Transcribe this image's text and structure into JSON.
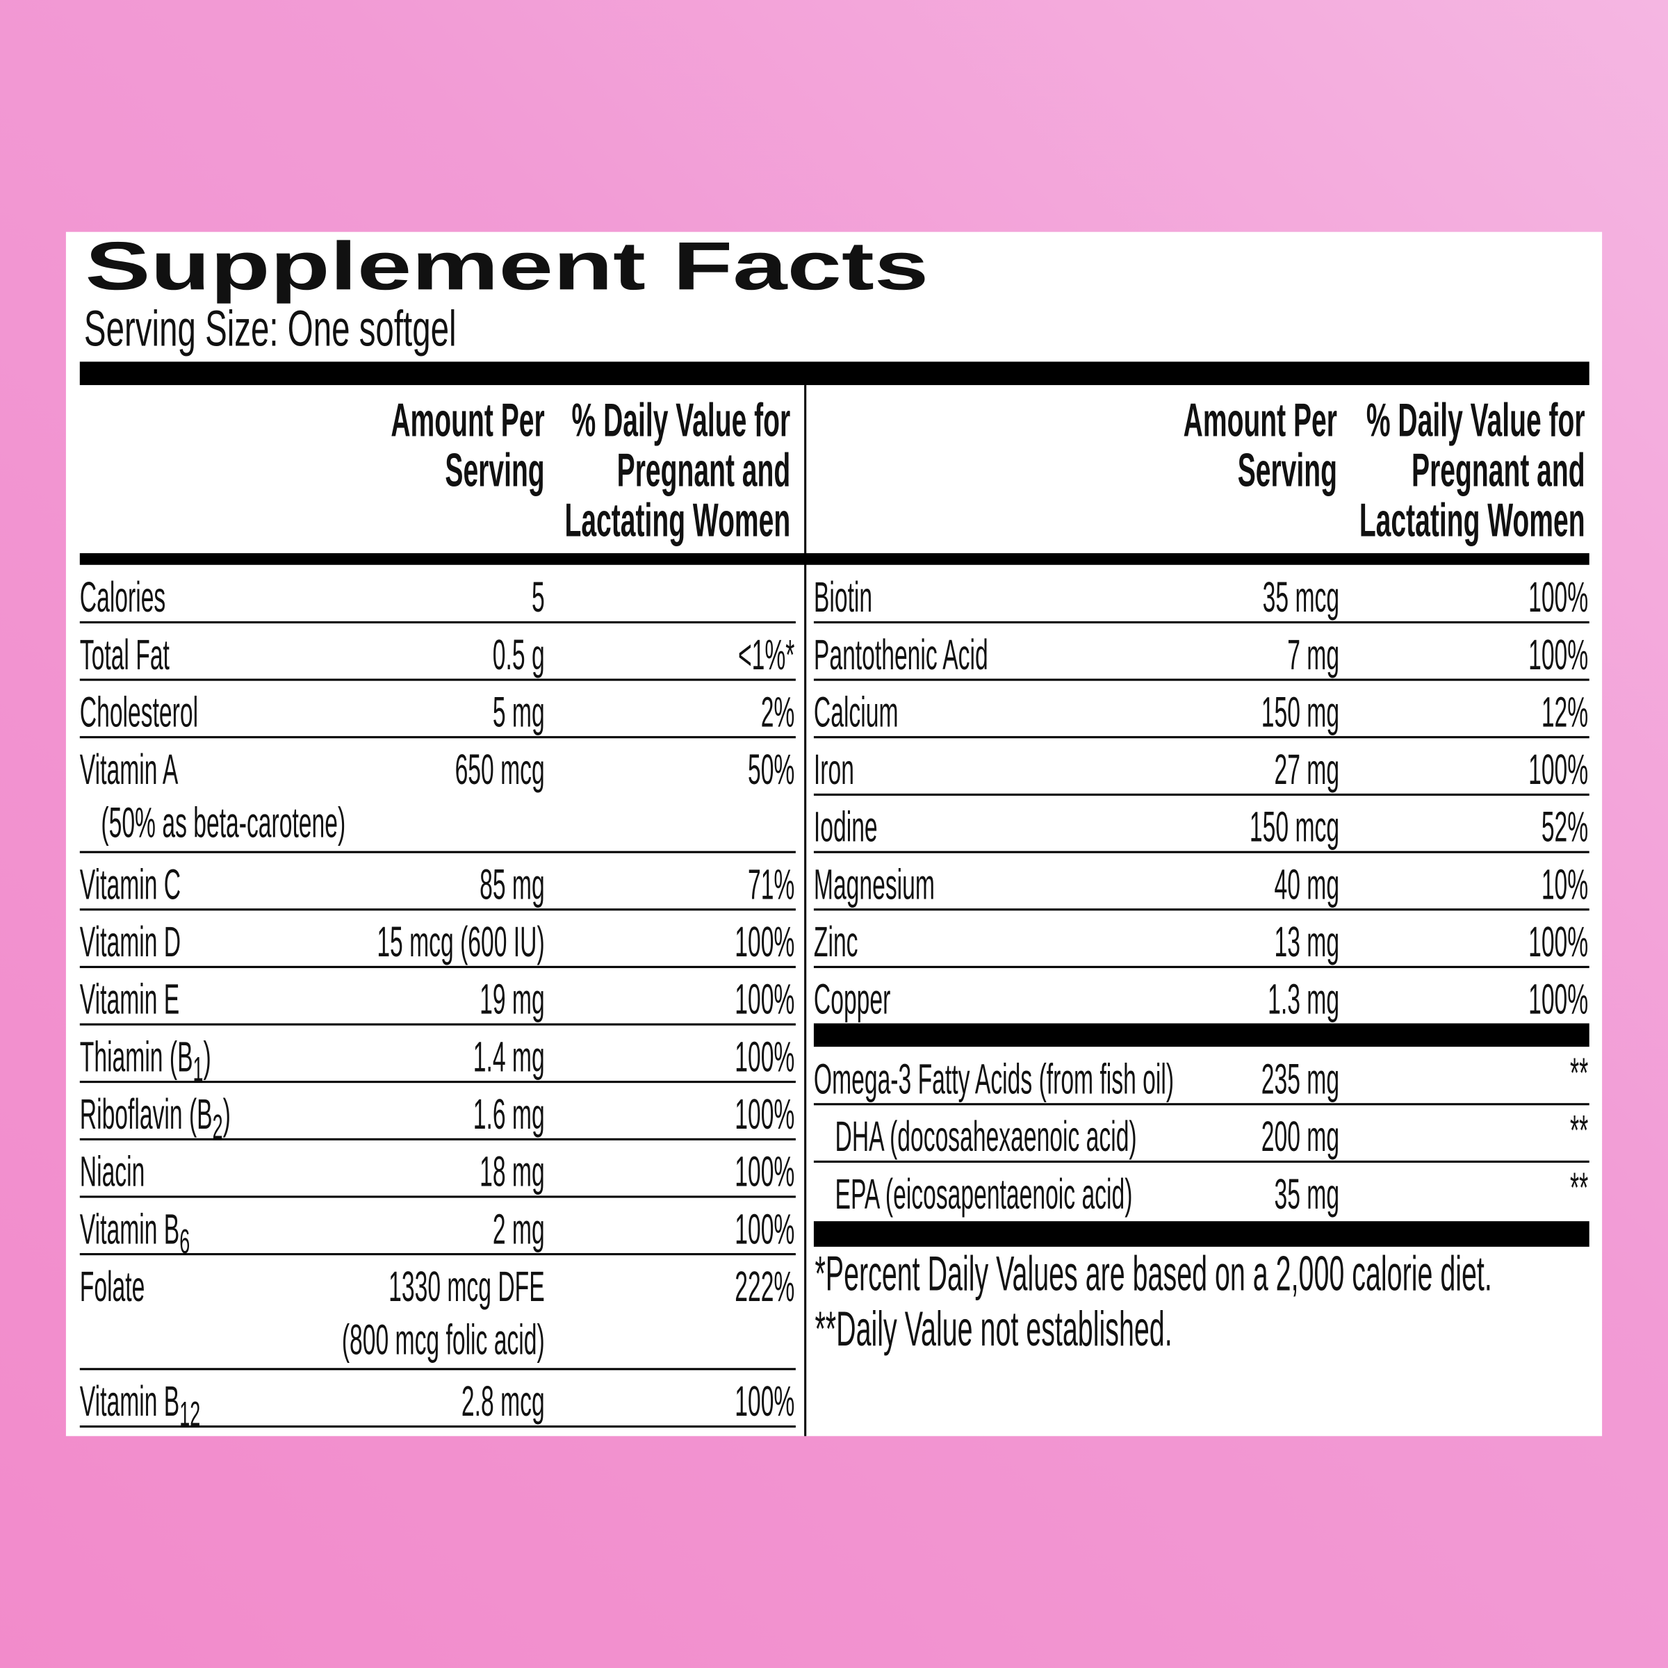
{
  "header": {
    "title": "Supplement Facts",
    "serving_size": "Serving Size: One softgel"
  },
  "column_headers": {
    "amount": [
      "Amount Per",
      "Serving"
    ],
    "daily_value": [
      "% Daily Value for",
      "Pregnant and",
      "Lactating Women"
    ]
  },
  "left_rows": [
    {
      "name": "Calories",
      "amount": "5"
    },
    {
      "name": "Total Fat",
      "amount": "0.5 g",
      "dv": "<1%*"
    },
    {
      "name": "Cholesterol",
      "amount": "5 mg",
      "dv": "2%"
    },
    {
      "name": "Vitamin A",
      "note": "(50% as beta-carotene)",
      "amount": "650 mcg",
      "dv": "50%"
    },
    {
      "name": "Vitamin C",
      "amount": "85 mg",
      "dv": "71%"
    },
    {
      "name": "Vitamin D",
      "amount": "15 mcg (600 IU)",
      "dv": "100%"
    },
    {
      "name": "Vitamin E",
      "amount": "19 mg",
      "dv": "100%"
    },
    {
      "name": "Thiamin (B",
      "subscript": "1",
      "suffix": ")",
      "amount": "1.4 mg",
      "dv": "100%"
    },
    {
      "name": "Riboflavin (B",
      "subscript": "2",
      "suffix": ")",
      "amount": "1.6 mg",
      "dv": "100%"
    },
    {
      "name": "Niacin",
      "amount": "18 mg",
      "dv": "100%"
    },
    {
      "name": "Vitamin B",
      "subscript": "6",
      "amount": "2 mg",
      "dv": "100%"
    },
    {
      "name": "Folate",
      "amount": "1330 mcg DFE",
      "amount_note": "(800 mcg folic acid)",
      "dv": "222%"
    },
    {
      "name": "Vitamin B",
      "subscript": "12",
      "amount": "2.8 mcg",
      "dv": "100%"
    }
  ],
  "right_rows": [
    {
      "name": "Biotin",
      "amount": "35 mcg",
      "dv": "100%"
    },
    {
      "name": "Pantothenic Acid",
      "amount": "7 mg",
      "dv": "100%"
    },
    {
      "name": "Calcium",
      "amount": "150 mg",
      "dv": "12%"
    },
    {
      "name": "Iron",
      "amount": "27 mg",
      "dv": "100%"
    },
    {
      "name": "Iodine",
      "amount": "150 mcg",
      "dv": "52%"
    },
    {
      "name": "Magnesium",
      "amount": "40 mg",
      "dv": "10%"
    },
    {
      "name": "Zinc",
      "amount": "13 mg",
      "dv": "100%"
    },
    {
      "name": "Copper",
      "amount": "1.3 mg",
      "dv": "100%"
    }
  ],
  "fatty_acids": [
    {
      "name": "Omega-3 Fatty Acids (from fish oil)",
      "amount": "235 mg",
      "dv": "**"
    },
    {
      "name": "DHA (docosahexaenoic acid)",
      "amount": "200 mg",
      "dv": "**"
    },
    {
      "name": "EPA (eicosapentaenoic acid)",
      "amount": "35 mg",
      "dv": "**"
    }
  ],
  "footnotes": [
    "*Percent Daily Values are based on a 2,000 calorie diet.",
    "**Daily Value not established."
  ]
}
